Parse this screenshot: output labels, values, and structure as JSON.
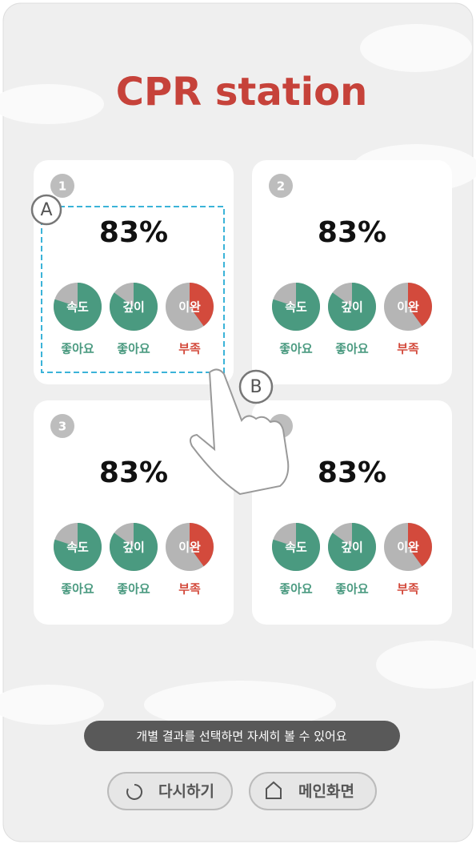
{
  "header": {
    "title": "CPR station"
  },
  "cards": [
    {
      "number": "1",
      "score": "83%",
      "metrics": [
        {
          "label": "속도",
          "status": "좋아요",
          "level": 80,
          "color": "#4a9a80"
        },
        {
          "label": "깊이",
          "status": "좋아요",
          "level": 85,
          "color": "#4a9a80"
        },
        {
          "label": "이완",
          "status": "부족",
          "level": 40,
          "color": "#d34a3c"
        }
      ]
    },
    {
      "number": "2",
      "score": "83%",
      "metrics": [
        {
          "label": "속도",
          "status": "좋아요",
          "level": 80,
          "color": "#4a9a80"
        },
        {
          "label": "깊이",
          "status": "좋아요",
          "level": 85,
          "color": "#4a9a80"
        },
        {
          "label": "이완",
          "status": "부족",
          "level": 40,
          "color": "#d34a3c"
        }
      ]
    },
    {
      "number": "3",
      "score": "83%",
      "metrics": [
        {
          "label": "속도",
          "status": "좋아요",
          "level": 80,
          "color": "#4a9a80"
        },
        {
          "label": "깊이",
          "status": "좋아요",
          "level": 85,
          "color": "#4a9a80"
        },
        {
          "label": "이완",
          "status": "부족",
          "level": 40,
          "color": "#d34a3c"
        }
      ]
    },
    {
      "score": "83%",
      "metrics": [
        {
          "label": "속도",
          "status": "좋아요",
          "level": 80,
          "color": "#4a9a80"
        },
        {
          "label": "깊이",
          "status": "좋아요",
          "level": 85,
          "color": "#4a9a80"
        },
        {
          "label": "이완",
          "status": "부족",
          "level": 40,
          "color": "#d34a3c"
        }
      ]
    }
  ],
  "callouts": [
    "A",
    "B"
  ],
  "hint": "개별 결과를 선택하면 자세히 볼 수 있어요",
  "buttons": [
    "다시하기",
    "메인화면"
  ]
}
